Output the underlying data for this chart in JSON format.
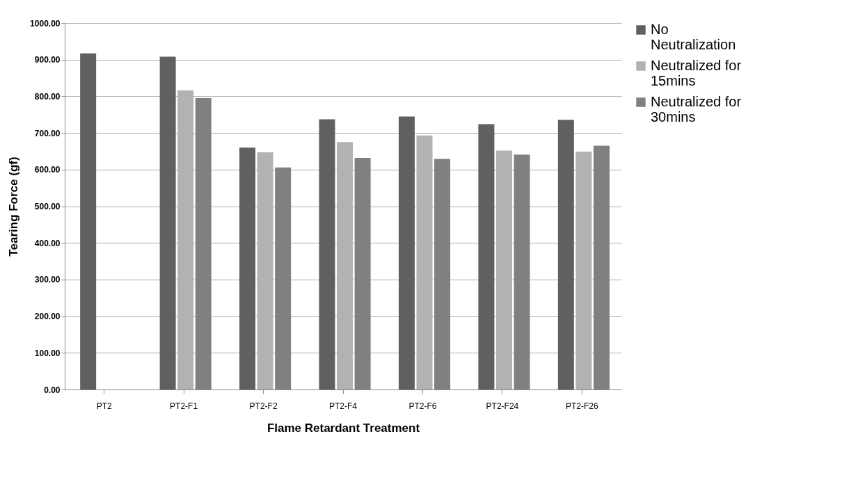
{
  "chart_data": {
    "type": "bar",
    "xlabel": "Flame Retardant Treatment",
    "ylabel": "Tearing Force (gf)",
    "categories": [
      "PT2",
      "PT2-F1",
      "PT2-F2",
      "PT2-F4",
      "PT2-F6",
      "PT2-F24",
      "PT2-F26"
    ],
    "series": [
      {
        "name": "No Neutralization",
        "color": "#606060",
        "values": [
          917,
          908,
          660,
          737,
          745,
          724,
          736
        ]
      },
      {
        "name": "Neutralized for 15mins",
        "color": "#b2b2b2",
        "values": [
          null,
          816,
          647,
          675,
          693,
          652,
          649
        ]
      },
      {
        "name": "Neutralized for 30mins",
        "color": "#808080",
        "values": [
          null,
          795,
          606,
          632,
          629,
          641,
          665
        ]
      }
    ],
    "ylim": [
      0,
      1000
    ],
    "yticks": [
      {
        "value": 0,
        "label": "0.00"
      },
      {
        "value": 100,
        "label": "100.00"
      },
      {
        "value": 200,
        "label": "200.00"
      },
      {
        "value": 300,
        "label": "300.00"
      },
      {
        "value": 400,
        "label": "400.00"
      },
      {
        "value": 500,
        "label": "500.00"
      },
      {
        "value": 600,
        "label": "600.00"
      },
      {
        "value": 700,
        "label": "700.00"
      },
      {
        "value": 800,
        "label": "800.00"
      },
      {
        "value": 900,
        "label": "900.00"
      },
      {
        "value": 1000,
        "label": "1000.00"
      }
    ],
    "grid": "y",
    "legend": "right"
  }
}
